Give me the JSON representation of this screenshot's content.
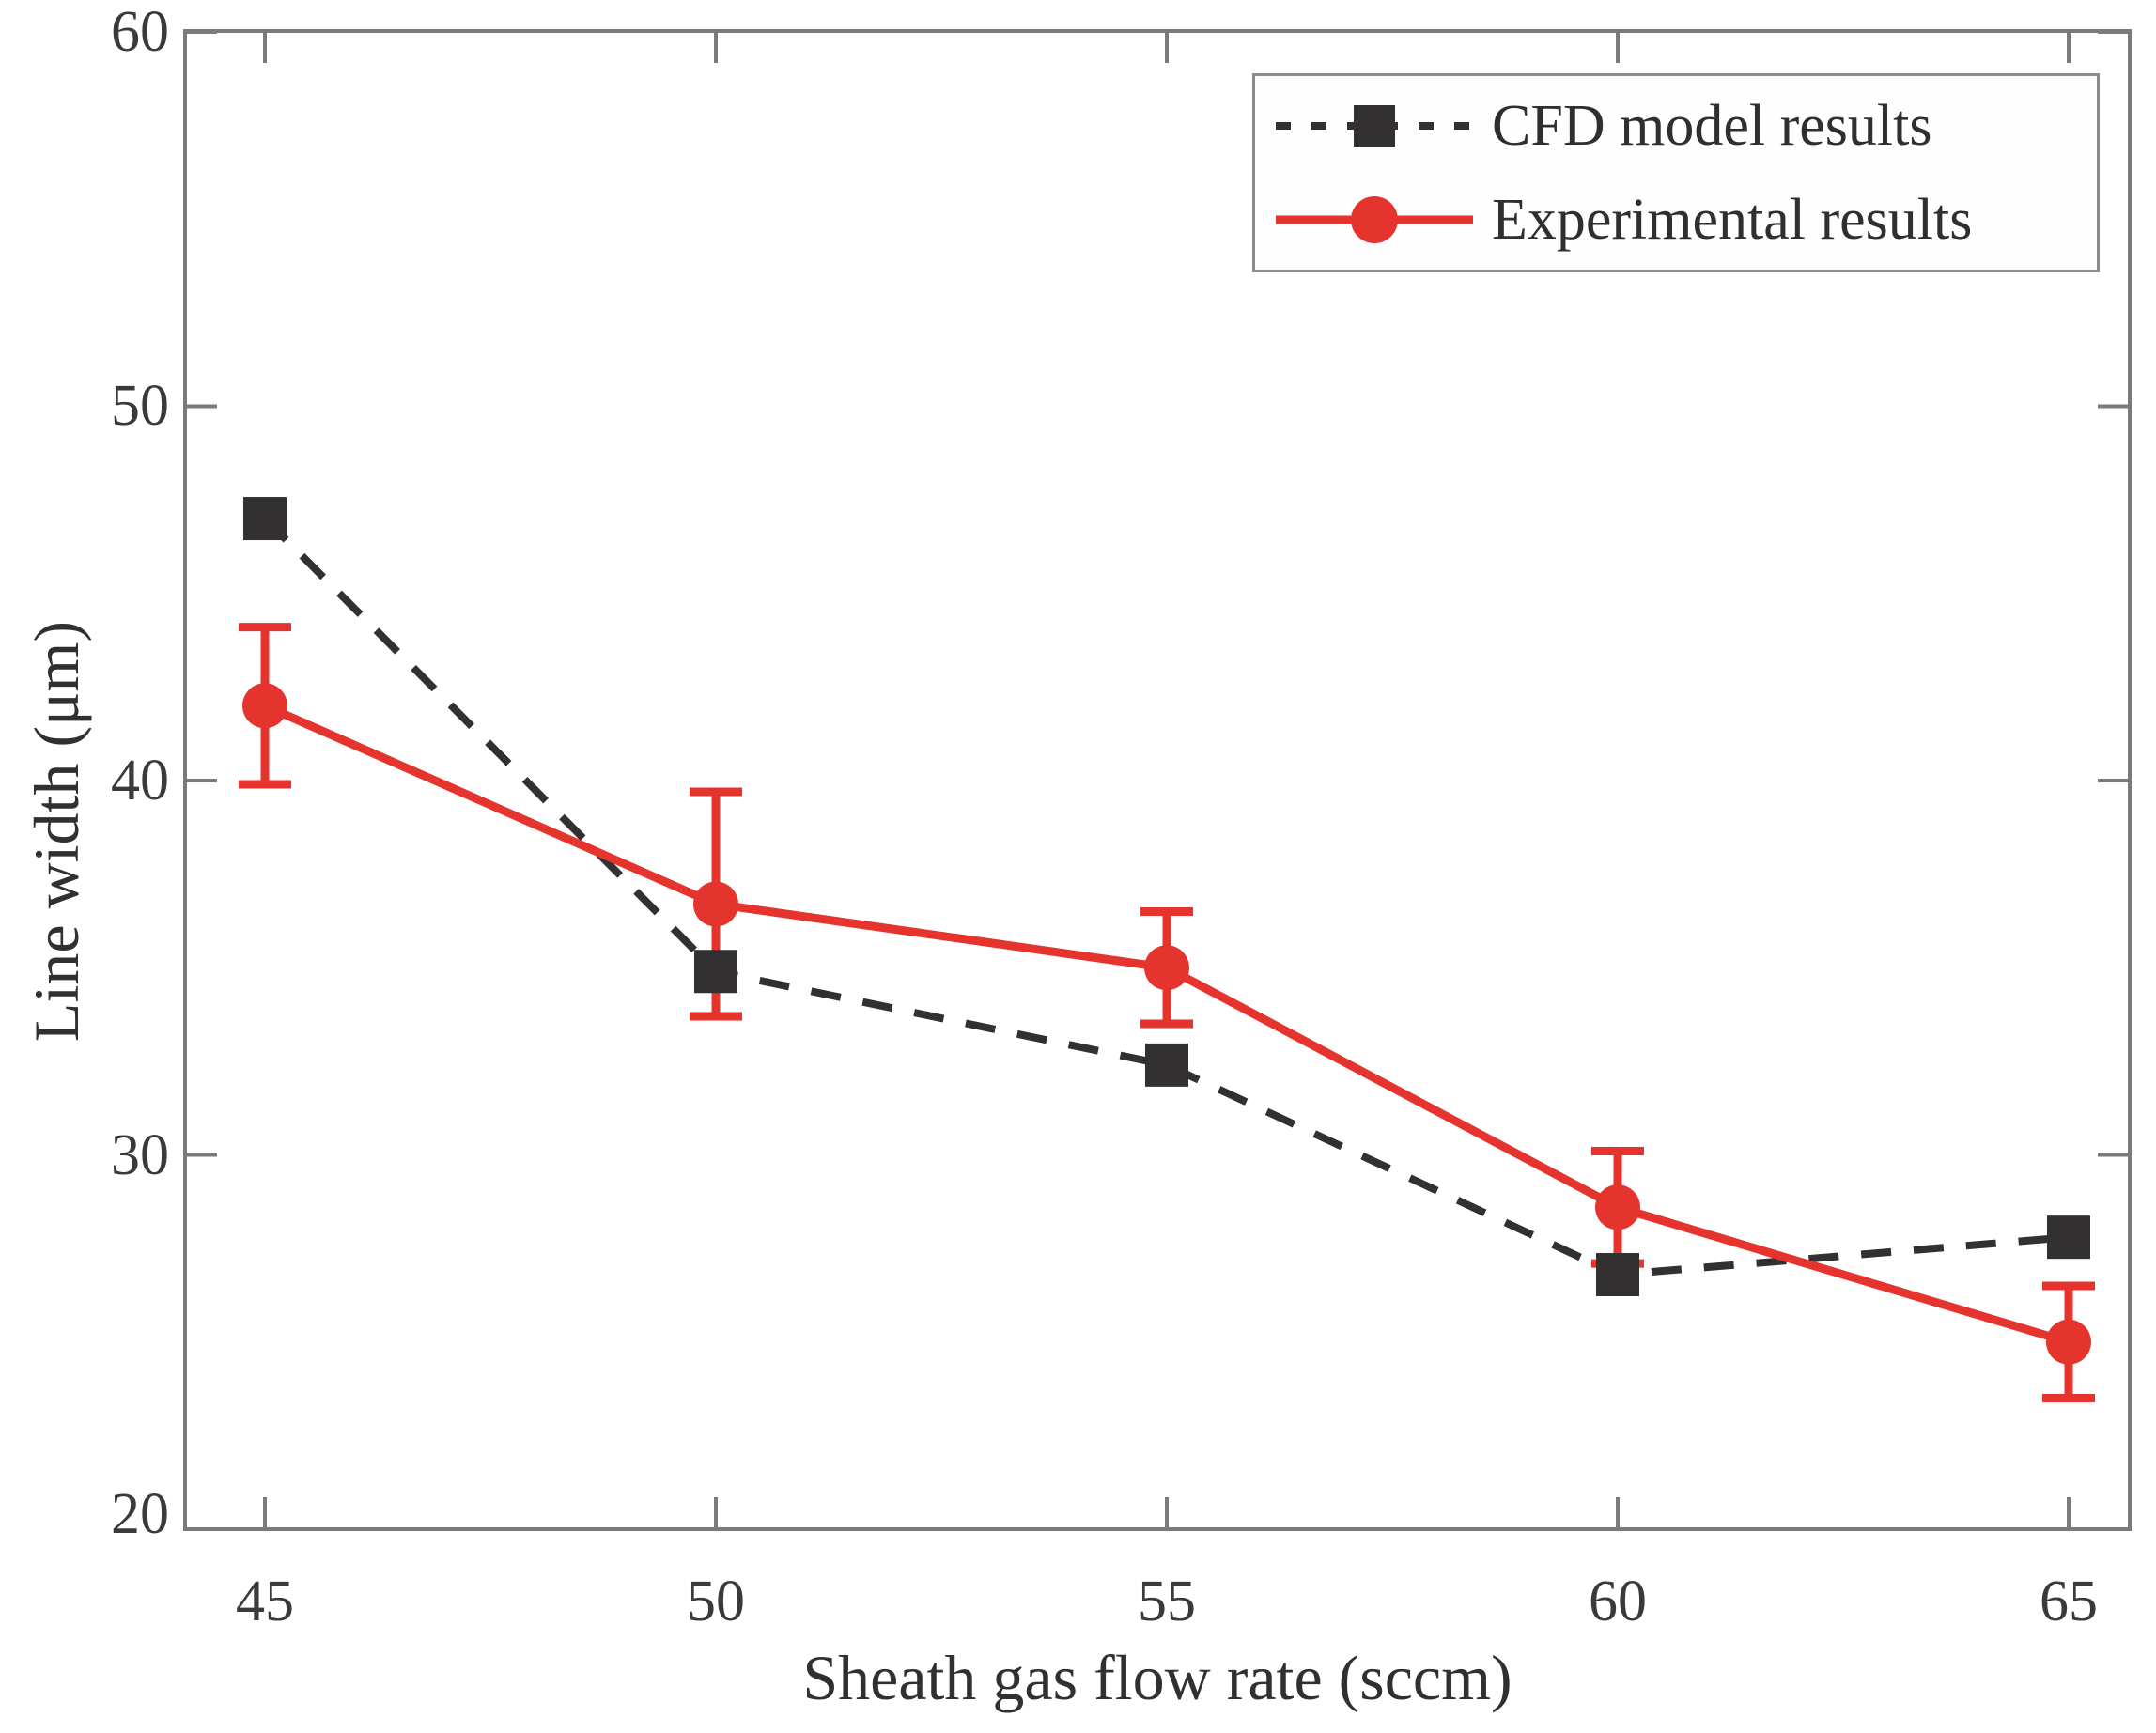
{
  "chart_data": {
    "type": "line",
    "title": "",
    "xlabel": "Sheath gas flow rate (sccm)",
    "ylabel": "Line width (μm)",
    "x": [
      45,
      50,
      55,
      60,
      65
    ],
    "xticks": [
      45,
      50,
      55,
      60,
      65
    ],
    "yticks": [
      20,
      30,
      40,
      50,
      60
    ],
    "xlim": [
      44,
      66
    ],
    "ylim": [
      20,
      60
    ],
    "grid": false,
    "legend_position": "top-right",
    "series": [
      {
        "name": "CFD model results",
        "color": "#333031",
        "line_style": "dashed",
        "marker": "square",
        "values": [
          47.0,
          34.9,
          32.4,
          26.8,
          27.8
        ]
      },
      {
        "name": "Experimental results",
        "color": "#e5332d",
        "line_style": "solid",
        "marker": "circle",
        "values": [
          42.0,
          36.7,
          35.0,
          28.6,
          25.0
        ],
        "error": [
          2.1,
          3.0,
          1.5,
          1.5,
          1.5
        ]
      }
    ],
    "colors": {
      "axis": "#7a7a7a",
      "tick_text": "#3a3a3a"
    }
  },
  "labels": {
    "xtick": [
      "45",
      "50",
      "55",
      "60",
      "65"
    ],
    "ytick": [
      "60",
      "50",
      "40",
      "30",
      "20"
    ]
  }
}
